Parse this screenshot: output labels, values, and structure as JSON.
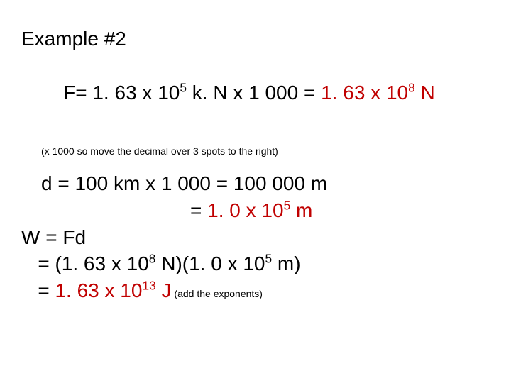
{
  "colors": {
    "text": "#000000",
    "accent": "#c00000",
    "background": "#ffffff"
  },
  "title": "Example #2",
  "force": {
    "prefix": "F= 1. 63 x 10",
    "exp1": "5",
    "mid": " k. N x 1 000 = ",
    "result_prefix": "1. 63 x 10",
    "result_exp": "8",
    "result_suffix": " N"
  },
  "note1": "(x 1000 so move the decimal over 3 spots to the right)",
  "distance": {
    "line1": "d = 100 km x 1 000 = 100 000 m",
    "line2_indent": "                           = ",
    "line2_val_prefix": "1. 0 x 10",
    "line2_exp": "5",
    "line2_suffix": " m"
  },
  "work": {
    "line1": "W = Fd",
    "line2_pre": "   = (1. 63 x 10",
    "line2_exp1": "8",
    "line2_mid": " N)(1. 0 x 10",
    "line2_exp2": "5",
    "line2_post": " m)",
    "line3_pre": "   = ",
    "line3_val_prefix": "1. 63 x 10",
    "line3_exp": "13",
    "line3_val_suffix": " J",
    "line3_note": " (add the exponents)"
  }
}
